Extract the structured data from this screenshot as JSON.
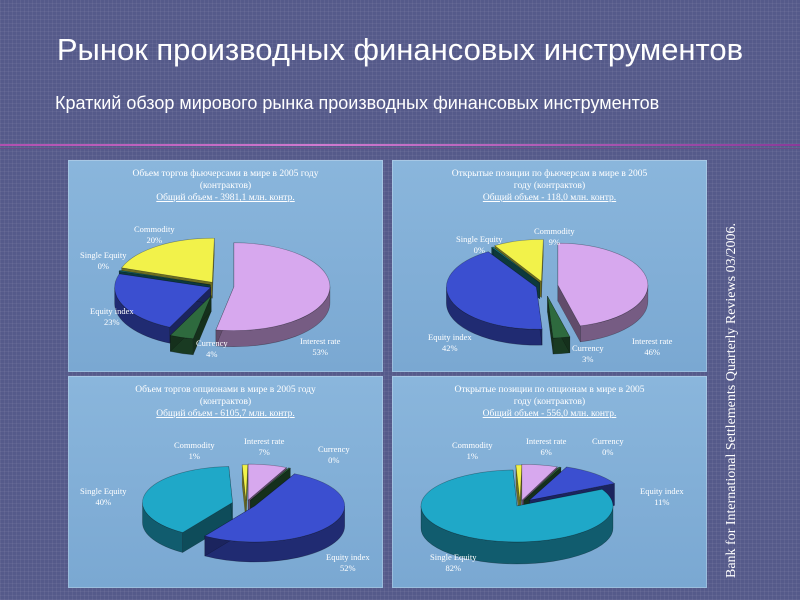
{
  "title": "Рынок производных финансовых инструментов",
  "subtitle": "Краткий обзор мирового рынка производных финансовых инструментов",
  "source": "Bank for International Settlements Quarterly Reviews 03/2006.",
  "chart_data": [
    {
      "type": "pie",
      "title_line1": "Объем торгов фьючерсами в мире в 2005 году",
      "title_line2": "(контрактов)",
      "total": "Общий объем - 3981,1 млн. контр.",
      "labels": [
        "Interest rate",
        "Currency",
        "Equity index",
        "Single Equity",
        "Commodity"
      ],
      "values": [
        53,
        4,
        23,
        0,
        20
      ],
      "value_labels": [
        "53%",
        "4%",
        "23%",
        "0%",
        "20%"
      ],
      "colors": [
        "#d7a8ee",
        "#2e6a3e",
        "#3b4fd0",
        "#1d7f86",
        "#f2f24a"
      ]
    },
    {
      "type": "pie",
      "title_line1": "Открытые позиции по фьючерсам в мире в 2005",
      "title_line2": "году (контрактов)",
      "total": "Общий объем - 118,0 млн. контр.",
      "labels": [
        "Interest rate",
        "Currency",
        "Equity index",
        "Single Equity",
        "Commodity"
      ],
      "values": [
        46,
        3,
        42,
        0,
        9
      ],
      "value_labels": [
        "46%",
        "3%",
        "42%",
        "0%",
        "9%"
      ],
      "colors": [
        "#d7a8ee",
        "#2e6a3e",
        "#3b4fd0",
        "#1d7f86",
        "#f2f24a"
      ]
    },
    {
      "type": "pie",
      "title_line1": "Объем торгов опционами в мире в 2005 году",
      "title_line2": "(контрактов)",
      "total": "Общий объем - 6105,7 млн. контр.",
      "labels": [
        "Interest rate",
        "Currency",
        "Equity index",
        "Single Equity",
        "Commodity"
      ],
      "values": [
        7,
        0,
        52,
        40,
        1
      ],
      "value_labels": [
        "7%",
        "0%",
        "52%",
        "40%",
        "1%"
      ],
      "colors": [
        "#d7a8ee",
        "#2e6a3e",
        "#3b4fd0",
        "#1fa8c8",
        "#f2f24a"
      ]
    },
    {
      "type": "pie",
      "title_line1": "Открытые позиции по опционам в мире в 2005",
      "title_line2": "году (контрактов)",
      "total": "Общий объем - 556,0 млн. контр.",
      "labels": [
        "Interest rate",
        "Currency",
        "Equity index",
        "Single Equity",
        "Commodity"
      ],
      "values": [
        6,
        0,
        11,
        82,
        1
      ],
      "value_labels": [
        "6%",
        "0%",
        "11%",
        "82%",
        "1%"
      ],
      "colors": [
        "#d7a8ee",
        "#2e6a3e",
        "#3b4fd0",
        "#1fa8c8",
        "#f2f24a"
      ]
    }
  ]
}
